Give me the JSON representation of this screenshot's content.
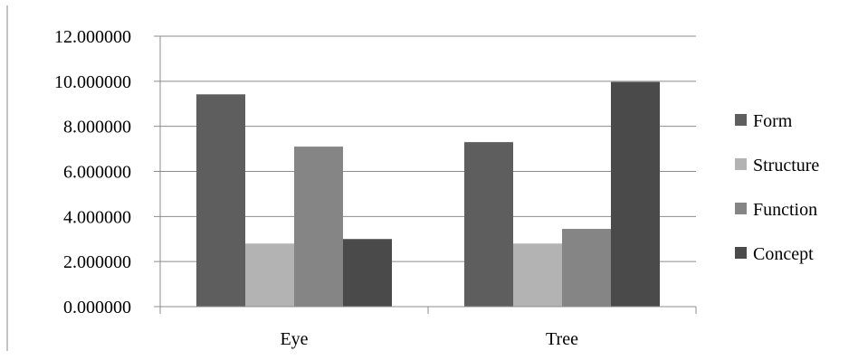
{
  "chart_data": {
    "type": "bar",
    "categories": [
      "Eye",
      "Tree"
    ],
    "series": [
      {
        "name": "Form",
        "values": [
          9.42,
          7.3
        ],
        "color": "#5e5e5e"
      },
      {
        "name": "Structure",
        "values": [
          2.8,
          2.8
        ],
        "color": "#b3b3b3"
      },
      {
        "name": "Function",
        "values": [
          7.1,
          3.45
        ],
        "color": "#858585"
      },
      {
        "name": "Concept",
        "values": [
          3.0,
          9.97
        ],
        "color": "#4a4a4a"
      }
    ],
    "ylim": [
      0,
      12
    ],
    "yticks": [
      "0.000000",
      "2.000000",
      "4.000000",
      "6.000000",
      "8.000000",
      "10.000000",
      "12.000000"
    ],
    "ytick_values": [
      0,
      2,
      4,
      6,
      8,
      10,
      12
    ],
    "grid": true,
    "legend_position": "right",
    "title": "",
    "xlabel": "",
    "ylabel": ""
  }
}
